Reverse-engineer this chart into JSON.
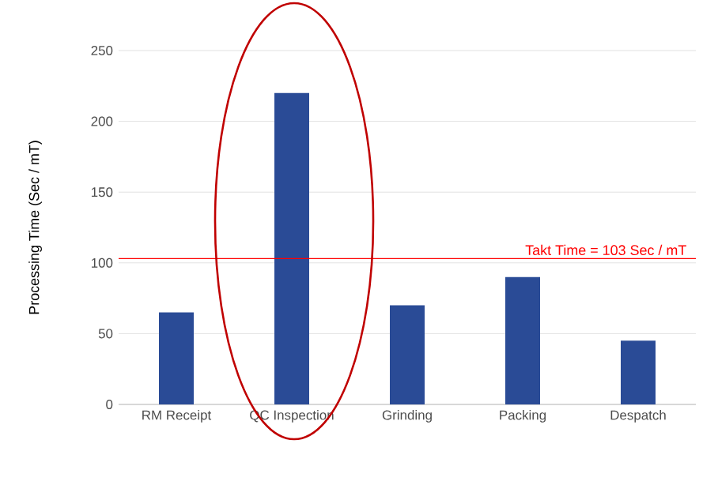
{
  "chart_data": {
    "type": "bar",
    "ylabel": "Processing Time (Sec / mT)",
    "categories": [
      "RM Receipt",
      "QC Inspection",
      "Grinding",
      "Packing",
      "Despatch"
    ],
    "values": [
      65,
      220,
      70,
      90,
      45
    ],
    "color": "#2a4b96",
    "ylim": [
      0,
      250
    ],
    "yticks": [
      0,
      50,
      100,
      150,
      200,
      250
    ],
    "grid": "y",
    "ref_lines": [
      {
        "axis": "y",
        "value": 103,
        "label": "Takt Time = 103 Sec / mT",
        "color": "#ff0000"
      }
    ]
  }
}
